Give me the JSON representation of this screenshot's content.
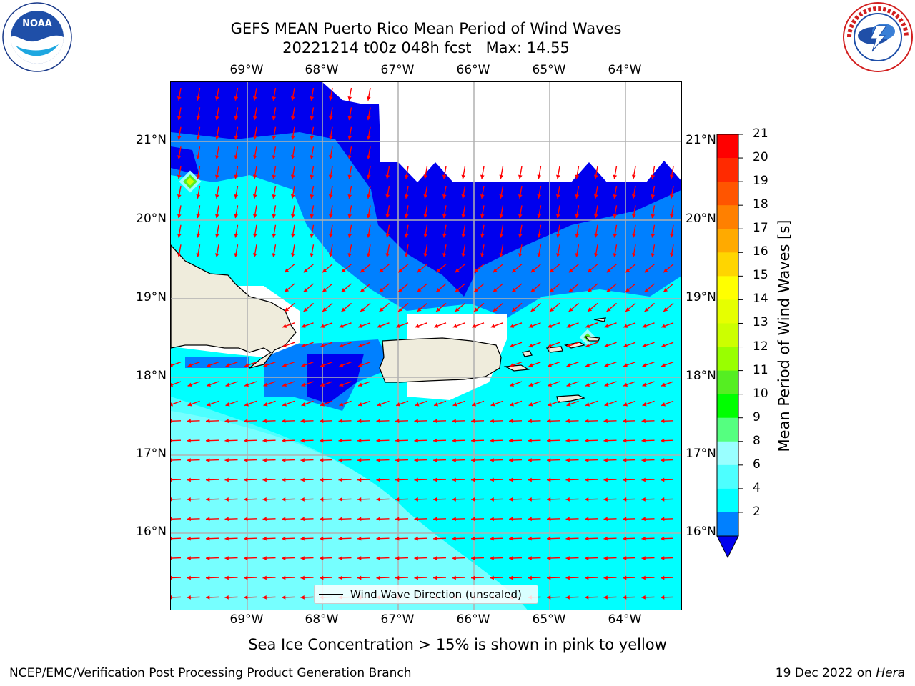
{
  "header": {
    "title_line1": "GEFS MEAN Puerto Rico Mean Period of Wind Waves",
    "title_line2": "20221214 t00z 048h fcst   Max: 14.55"
  },
  "logos": {
    "left": {
      "name": "noaa-logo",
      "text_top": "NATIONAL OCEANIC AND ATMOSPHERIC ADMINISTRATION",
      "text_bottom": "U.S. DEPARTMENT OF COMMERCE",
      "center": "NOAA"
    },
    "right": {
      "name": "nws-logo",
      "text": "NATIONAL WEATHER SERVICE"
    }
  },
  "map": {
    "lon_labels": [
      "69°W",
      "68°W",
      "67°W",
      "66°W",
      "65°W",
      "64°W"
    ],
    "lat_labels": [
      "21°N",
      "20°N",
      "19°N",
      "18°N",
      "17°N",
      "16°N"
    ],
    "colors": {
      "land": "#efecdc",
      "coast": "#000000",
      "grid": "#b0b0b0",
      "arrow": "#ff0000",
      "band_lt2": "#0000ee",
      "band_2_4": "#0080ff",
      "band_4_6": "#00ffff",
      "band_6_8": "#4dffff",
      "band_8_9": "#99ffff"
    }
  },
  "colorbar": {
    "levels": [
      "21",
      "20",
      "19",
      "18",
      "17",
      "16",
      "15",
      "14",
      "13",
      "12",
      "11",
      "10",
      "9",
      "8",
      "6",
      "4",
      "2"
    ],
    "colors_top_to_bottom": [
      "#ff0000",
      "#ff2a00",
      "#ff5500",
      "#ff8000",
      "#ffaa00",
      "#ffd500",
      "#ffff00",
      "#e6ff00",
      "#ccff00",
      "#99ff00",
      "#55ee22",
      "#00ff00",
      "#55ff80",
      "#99ffff",
      "#4dffff",
      "#00ffff",
      "#0080ff"
    ],
    "extend_color": "#0000ee",
    "label": "Mean Period of Wind Waves [s]"
  },
  "legend": {
    "label": "Wind Wave Direction (unscaled)"
  },
  "footer": {
    "subtitle": "Sea Ice Concentration > 15% is shown in pink to yellow",
    "left": "NCEP/EMC/Verification Post Processing Product Generation Branch",
    "right_prefix": "19 Dec 2022 on ",
    "right_machine": "Hera"
  }
}
